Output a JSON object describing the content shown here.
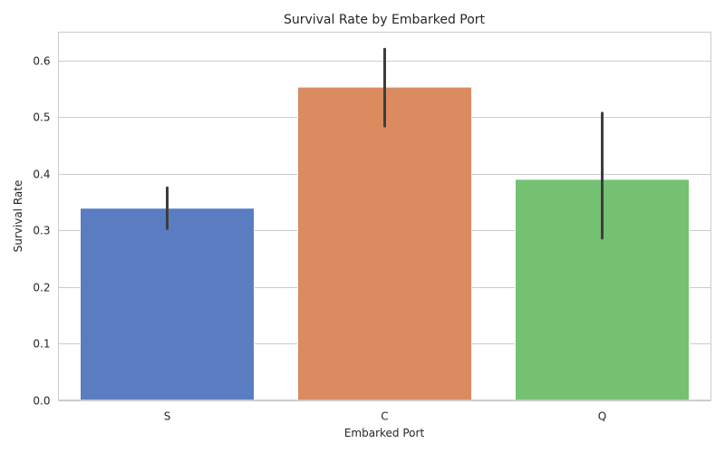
{
  "chart_data": {
    "type": "bar",
    "title": "Survival Rate by Embarked Port",
    "xlabel": "Embarked Port",
    "ylabel": "Survival Rate",
    "categories": [
      "S",
      "C",
      "Q"
    ],
    "values": [
      0.339,
      0.553,
      0.39
    ],
    "error_bars": [
      {
        "low": 0.303,
        "high": 0.375
      },
      {
        "low": 0.484,
        "high": 0.62
      },
      {
        "low": 0.286,
        "high": 0.507
      }
    ],
    "ylim": [
      0,
      0.65
    ],
    "yticks": [
      0.0,
      0.1,
      0.2,
      0.3,
      0.4,
      0.5,
      0.6
    ],
    "ytick_labels": [
      "0.0",
      "0.1",
      "0.2",
      "0.3",
      "0.4",
      "0.5",
      "0.6"
    ],
    "colors": [
      "#5a7dc1",
      "#da8b5f",
      "#75c172"
    ],
    "error_color": "#3d3d3d",
    "grid": true,
    "grid_axis": "y"
  }
}
